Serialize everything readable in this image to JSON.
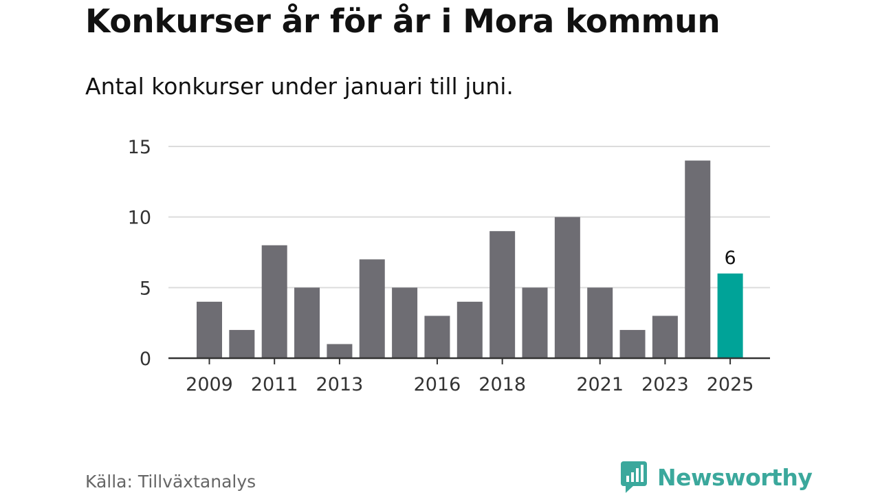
{
  "header": {
    "title": "Konkurser år för år i Mora kommun",
    "subtitle": "Antal konkurser under januari till juni."
  },
  "footer": {
    "source": "Källa: Tillväxtanalys",
    "brand": "Newsworthy"
  },
  "colors": {
    "bar": "#6e6d73",
    "highlight": "#00a398",
    "grid": "#dcdcdc",
    "axis": "#333333",
    "brand": "#3ba89c"
  },
  "chart_data": {
    "type": "bar",
    "categories": [
      "2009",
      "2010",
      "2011",
      "2012",
      "2013",
      "2014",
      "2015",
      "2016",
      "2017",
      "2018",
      "2019",
      "2020",
      "2021",
      "2022",
      "2023",
      "2024",
      "2025"
    ],
    "values": [
      4,
      2,
      8,
      5,
      1,
      7,
      5,
      3,
      4,
      9,
      5,
      10,
      5,
      2,
      3,
      14,
      6
    ],
    "x_tick_labels": [
      "2009",
      "2011",
      "2013",
      "2016",
      "2018",
      "2021",
      "2023",
      "2025"
    ],
    "y_ticks": [
      0,
      5,
      10,
      15
    ],
    "ylim": [
      0,
      15
    ],
    "highlight_category": "2025",
    "data_labels": [
      {
        "category": "2025",
        "text": "6"
      }
    ],
    "grid": true,
    "legend": "none"
  }
}
